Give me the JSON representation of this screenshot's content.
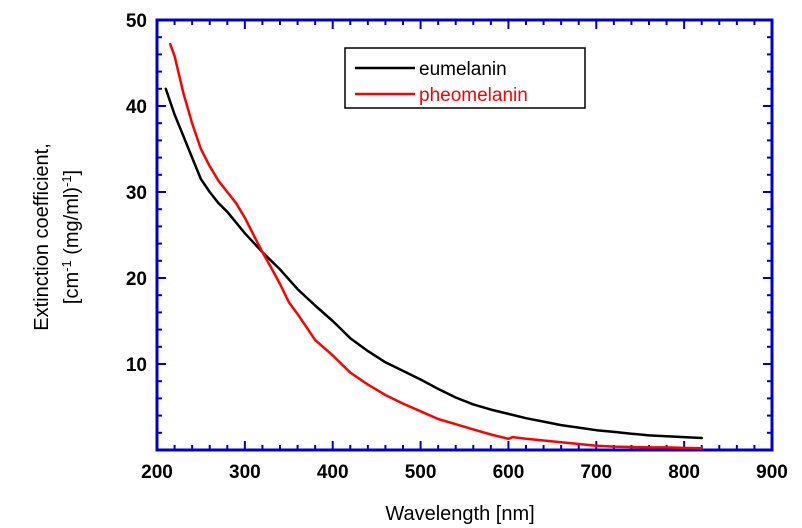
{
  "chart_data": {
    "type": "line",
    "title": "",
    "xlabel": "Wavelength [nm]",
    "ylabel_line1": "Extinction coefficient,",
    "ylabel_line2_prefix": "[cm",
    "ylabel_line2_sup1": "-1",
    "ylabel_line2_middle": " (mg/ml)",
    "ylabel_line2_sup2": "-1",
    "ylabel_line2_suffix": "]",
    "xlim": [
      200,
      900
    ],
    "ylim": [
      0,
      50
    ],
    "x_ticks": [
      200,
      300,
      400,
      500,
      600,
      700,
      800,
      900
    ],
    "x_tick_labels": [
      "200",
      "300",
      "400",
      "500",
      "600",
      "700",
      "800",
      "900"
    ],
    "y_ticks": [
      10,
      20,
      30,
      40,
      50
    ],
    "y_tick_labels": [
      "10",
      "20",
      "30",
      "40",
      "50"
    ],
    "grid": false,
    "legend_position": "top-center",
    "frame_color": "#0000cc",
    "series": [
      {
        "name": "eumelanin",
        "color": "#000000",
        "x": [
          210,
          220,
          230,
          240,
          250,
          260,
          270,
          280,
          300,
          320,
          340,
          360,
          380,
          400,
          420,
          440,
          460,
          480,
          500,
          520,
          540,
          560,
          580,
          600,
          620,
          640,
          660,
          680,
          700,
          720,
          740,
          760,
          780,
          800,
          820
        ],
        "y": [
          42.0,
          39.0,
          36.5,
          34.0,
          31.5,
          30.0,
          28.7,
          27.7,
          25.2,
          23.0,
          21.0,
          18.7,
          16.8,
          15.0,
          13.0,
          11.5,
          10.2,
          9.2,
          8.2,
          7.1,
          6.1,
          5.3,
          4.7,
          4.2,
          3.7,
          3.3,
          2.9,
          2.6,
          2.3,
          2.1,
          1.9,
          1.7,
          1.6,
          1.5,
          1.4
        ]
      },
      {
        "name": "pheomelanin",
        "color": "#ff0000",
        "x": [
          215,
          220,
          230,
          240,
          250,
          260,
          270,
          280,
          290,
          300,
          310,
          320,
          330,
          340,
          350,
          360,
          380,
          400,
          420,
          440,
          460,
          480,
          500,
          520,
          540,
          560,
          580,
          600,
          605,
          620,
          640,
          660,
          680,
          700,
          720,
          740,
          760,
          780,
          800,
          820
        ],
        "y": [
          47.2,
          45.8,
          41.5,
          38.0,
          35.0,
          33.0,
          31.3,
          30.0,
          28.7,
          27.0,
          25.0,
          23.0,
          21.2,
          19.3,
          17.2,
          15.8,
          12.8,
          11.0,
          9.0,
          7.6,
          6.4,
          5.4,
          4.5,
          3.6,
          3.0,
          2.4,
          1.8,
          1.3,
          1.5,
          1.3,
          1.1,
          0.9,
          0.7,
          0.5,
          0.4,
          0.35,
          0.3,
          0.3,
          0.25,
          0.2
        ]
      }
    ]
  }
}
